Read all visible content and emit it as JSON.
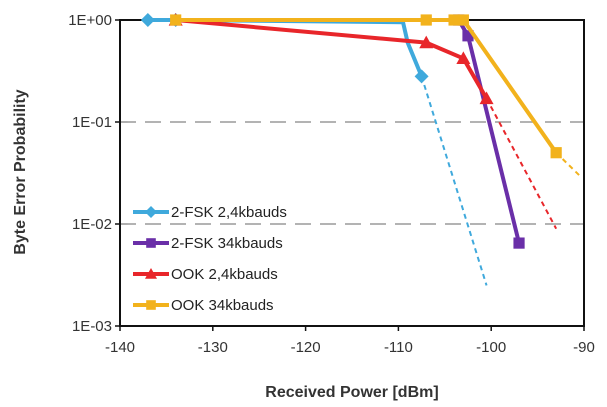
{
  "chart_data": {
    "type": "line",
    "xlabel": "Received Power [dBm]",
    "ylabel": "Byte Error Probability",
    "xlim": [
      -140,
      -90
    ],
    "ylim": [
      0.001,
      1
    ],
    "y_scale": "log",
    "x_ticks": [
      -140,
      -130,
      -120,
      -110,
      -100,
      -90
    ],
    "x_tick_labels": [
      "-140",
      "-130",
      "-120",
      "-110",
      "-100",
      "-90"
    ],
    "y_ticks": [
      1,
      0.1,
      0.01,
      0.001
    ],
    "y_tick_labels": [
      "1E+00",
      "1E-01",
      "1E-02",
      "1E-03"
    ],
    "grid": "dashed horizontal lines at 1E-01 and 1E-02",
    "legend_position": "bottom-left",
    "series": [
      {
        "name": "2-FSK 2,4kbauds",
        "color": "#3fa9dc",
        "marker": "diamond",
        "x": [
          -137,
          -134,
          -109.5,
          -109,
          -107.5
        ],
        "y": [
          1,
          1,
          0.95,
          0.6,
          0.28
        ],
        "extrapolation": {
          "x": [
            -107.5,
            -100.5
          ],
          "y": [
            0.28,
            0.0025
          ]
        }
      },
      {
        "name": "2-FSK 34kbauds",
        "color": "#6a2fa8",
        "marker": "square",
        "x": [
          -103.5,
          -102.5,
          -97
        ],
        "y": [
          1,
          0.7,
          0.0065
        ]
      },
      {
        "name": "OOK 2,4kbauds",
        "color": "#e8262a",
        "marker": "triangle",
        "x": [
          -134,
          -107,
          -103,
          -100.5
        ],
        "y": [
          1,
          0.6,
          0.42,
          0.17
        ],
        "extrapolation": {
          "x": [
            -100.5,
            -93
          ],
          "y": [
            0.17,
            0.009
          ]
        }
      },
      {
        "name": "OOK 34kbauds",
        "color": "#f2b21c",
        "marker": "square",
        "x": [
          -134,
          -107,
          -104,
          -103,
          -93
        ],
        "y": [
          1,
          1,
          1,
          1,
          0.05
        ],
        "extrapolation": {
          "x": [
            -93,
            -90.5
          ],
          "y": [
            0.05,
            0.03
          ]
        }
      }
    ]
  }
}
